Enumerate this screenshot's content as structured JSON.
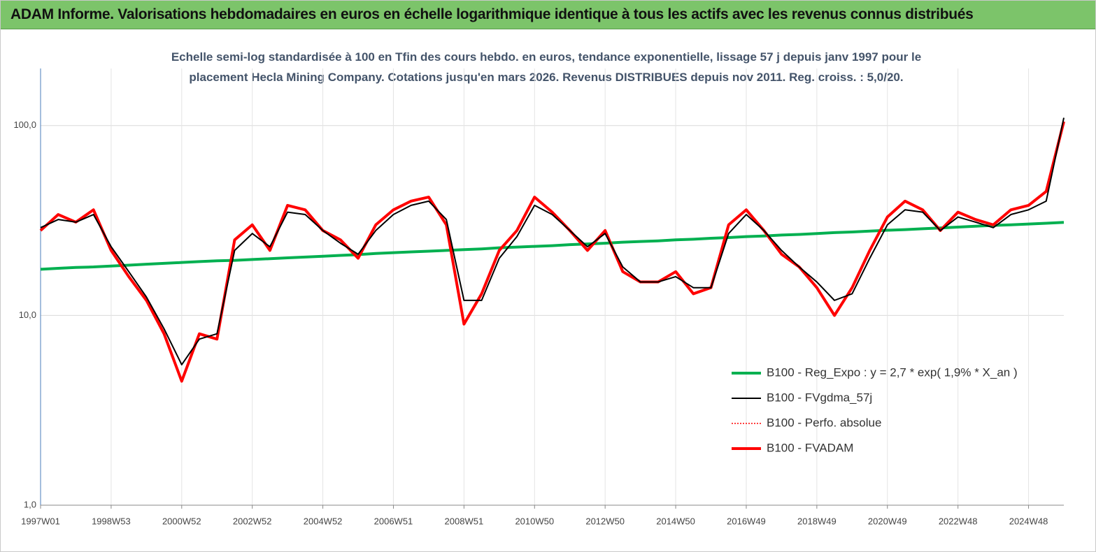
{
  "title": "ADAM Informe. Valorisations hebdomadaires en euros en échelle logarithmique identique à tous les actifs avec les revenus connus distribués",
  "chart_data": {
    "type": "line",
    "subtitle": "Echelle semi-log standardisée à 100 en Tfin des cours hebdo. en euros, tendance exponentielle, lissage 57 j depuis janv 1997 pour le placement Hecla Mining Company. Cotations jusqu'en mars 2026. Revenus DISTRIBUES depuis nov 2011. Reg.  croiss. : 5,0/20.",
    "categories": [
      "1997W01",
      null,
      null,
      null,
      "1998W53",
      null,
      null,
      null,
      "2000W52",
      null,
      null,
      null,
      "2002W52",
      null,
      null,
      null,
      "2004W52",
      null,
      null,
      null,
      "2006W51",
      null,
      null,
      null,
      "2008W51",
      null,
      null,
      null,
      "2010W50",
      null,
      null,
      null,
      "2012W50",
      null,
      null,
      null,
      "2014W50",
      null,
      null,
      null,
      "2016W49",
      null,
      null,
      null,
      "2018W49",
      null,
      null,
      null,
      "2020W49",
      null,
      null,
      null,
      "2022W48",
      null,
      null,
      null,
      "2024W48",
      null,
      null
    ],
    "ylim": [
      1,
      200
    ],
    "log_scale": true,
    "grid": true,
    "yticks": [
      {
        "value": 1,
        "label": "1,0"
      },
      {
        "value": 10,
        "label": "10,0"
      },
      {
        "value": 100,
        "label": "100,0"
      }
    ],
    "series": [
      {
        "name": "B100 - Reg_Expo : y = 2,7 * exp( 1,9% *  X_an )",
        "color": "#00b050",
        "style": "thick",
        "values": [
          17.5,
          17.7,
          17.9,
          18.0,
          18.2,
          18.4,
          18.6,
          18.8,
          19.0,
          19.2,
          19.4,
          19.5,
          19.7,
          19.9,
          20.1,
          20.3,
          20.5,
          20.7,
          20.9,
          21.2,
          21.4,
          21.6,
          21.8,
          22.0,
          22.2,
          22.4,
          22.7,
          22.9,
          23.1,
          23.3,
          23.6,
          23.8,
          24.0,
          24.3,
          24.5,
          24.7,
          25.0,
          25.2,
          25.5,
          25.7,
          26.0,
          26.2,
          26.5,
          26.7,
          27.0,
          27.3,
          27.5,
          27.8,
          28.1,
          28.3,
          28.6,
          28.9,
          29.2,
          29.5,
          29.8,
          30.0,
          30.3,
          30.6,
          30.9
        ]
      },
      {
        "name": "B100 - FVgdma_57j",
        "color": "#000000",
        "style": "thin",
        "values": [
          29,
          32,
          31,
          34,
          23,
          17,
          12.5,
          8.5,
          5.5,
          7.5,
          8,
          22,
          27,
          23,
          35,
          34,
          28,
          24,
          21,
          28,
          34,
          38,
          40,
          32,
          12,
          12,
          20,
          26,
          38,
          34,
          28,
          23,
          27,
          18,
          15,
          15,
          16,
          14,
          14,
          27,
          34,
          28,
          22,
          18,
          15,
          12,
          13,
          20,
          30,
          36,
          35,
          28,
          33,
          31,
          29,
          34,
          36,
          40,
          110
        ]
      },
      {
        "name": "B100 - Perfo. absolue",
        "color": "#ff0000",
        "style": "dotted",
        "values": [
          28,
          34,
          31,
          36,
          22,
          16,
          12,
          8,
          4.5,
          8,
          7.5,
          25,
          30,
          22,
          38,
          36,
          28,
          25,
          20,
          30,
          36,
          40,
          42,
          30,
          9,
          13,
          22,
          28,
          42,
          35,
          28,
          22,
          28,
          17,
          15,
          15,
          17,
          13,
          14,
          30,
          36,
          28,
          21,
          18,
          14,
          10,
          14,
          22,
          33,
          40,
          36,
          28,
          35,
          32,
          30,
          36,
          38,
          45,
          105
        ]
      },
      {
        "name": "B100 - FVADAM",
        "color": "#ff0000",
        "style": "thick",
        "values": [
          28,
          34,
          31,
          36,
          22,
          16,
          12,
          8,
          4.5,
          8,
          7.5,
          25,
          30,
          22,
          38,
          36,
          28,
          25,
          20,
          30,
          36,
          40,
          42,
          30,
          9,
          13,
          22,
          28,
          42,
          35,
          28,
          22,
          28,
          17,
          15,
          15,
          17,
          13,
          14,
          30,
          36,
          28,
          21,
          18,
          14,
          10,
          14,
          22,
          33,
          40,
          36,
          28,
          35,
          32,
          30,
          36,
          38,
          45,
          105
        ]
      }
    ]
  }
}
